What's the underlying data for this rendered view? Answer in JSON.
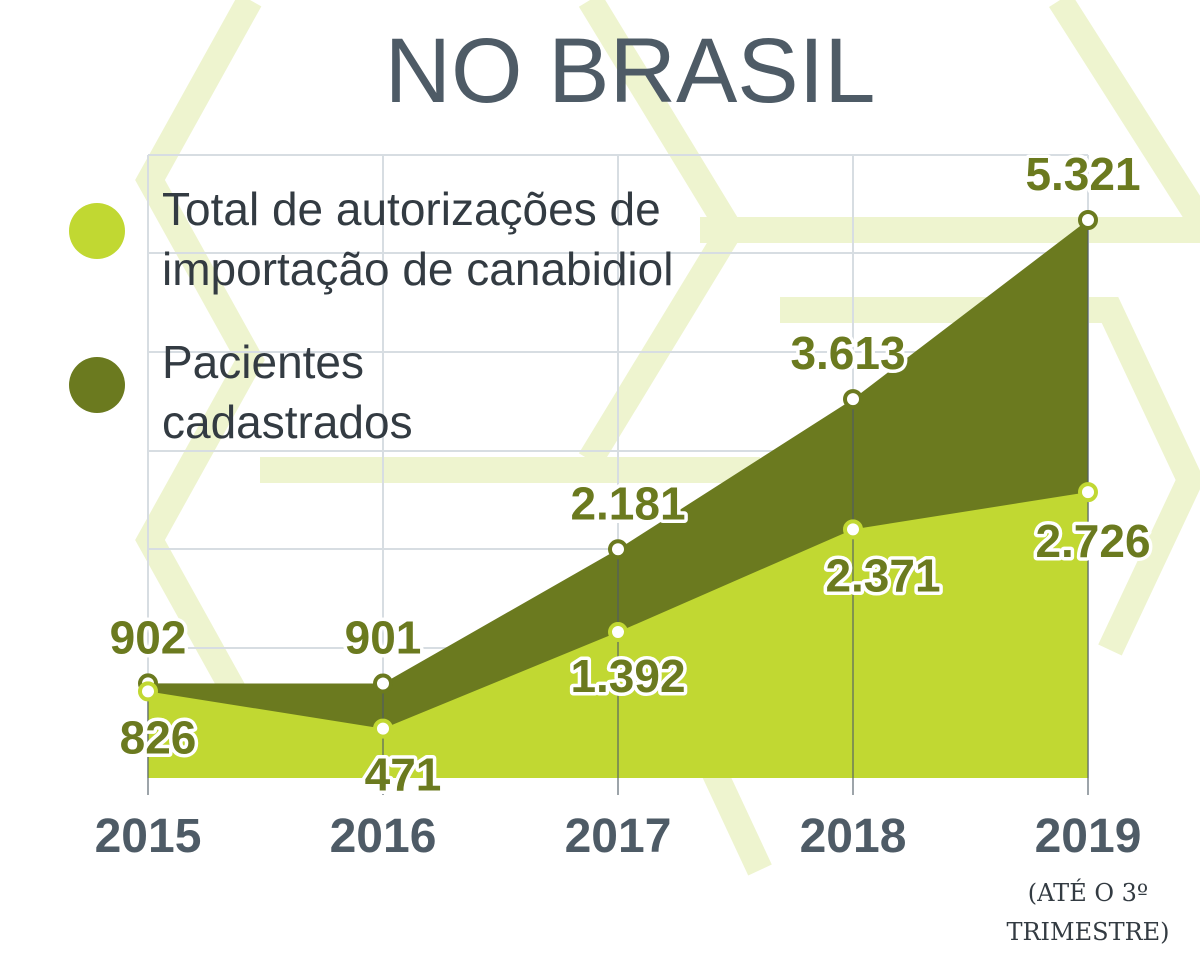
{
  "title": "NO BRASIL",
  "colors": {
    "light_series": "#c1d832",
    "dark_series": "#6b7a1f",
    "text": "#4e5b66",
    "grid": "#d7dde2",
    "background_pattern": "#eef4cf"
  },
  "legend": [
    {
      "label_line1": "Total de autorizações de",
      "label_line2": "importação de canabidiol",
      "color": "#c1d832"
    },
    {
      "label_line1": "Pacientes",
      "label_line2": "cadastrados",
      "color": "#6b7a1f"
    }
  ],
  "note": {
    "line1": "(ATÉ O 3º",
    "line2": "TRIMESTRE)"
  },
  "chart_data": {
    "type": "area",
    "title": "NO BRASIL",
    "categories": [
      "2015",
      "2016",
      "2017",
      "2018",
      "2019"
    ],
    "series": [
      {
        "name": "Total de autorizações de importação de canabidiol",
        "values": [
          826,
          471,
          1392,
          2371,
          2726
        ],
        "labels": [
          "826",
          "471",
          "1.392",
          "2.371",
          "2.726"
        ],
        "color": "#c1d832"
      },
      {
        "name": "Pacientes cadastrados",
        "values": [
          902,
          901,
          2181,
          3613,
          5321
        ],
        "labels": [
          "902",
          "901",
          "2.181",
          "3.613",
          "5.321"
        ],
        "color": "#6b7a1f"
      }
    ],
    "ylim": [
      0,
      5321
    ],
    "grid": true,
    "legend_position": "top-left"
  }
}
